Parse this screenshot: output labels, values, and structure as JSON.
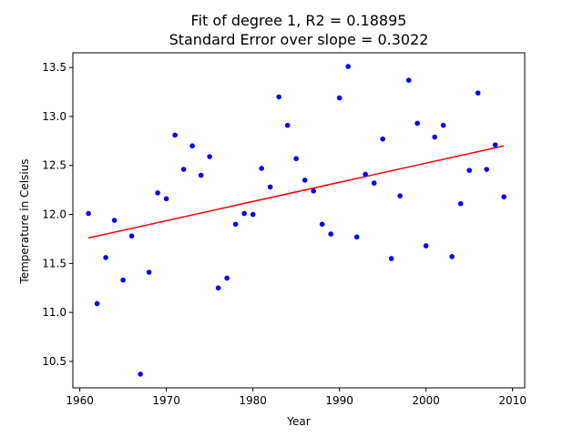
{
  "chart_data": {
    "type": "scatter",
    "title_line1": "Fit of degree 1, R2 = 0.18895",
    "title_line2": "Standard Error over slope = 0.3022",
    "xlabel": "Year",
    "ylabel": "Temperature in Celsius",
    "xlim": [
      1959.2,
      2011.4
    ],
    "ylim": [
      10.23,
      13.65
    ],
    "grid": false,
    "x_ticks": [
      1960,
      1970,
      1980,
      1990,
      2000,
      2010
    ],
    "y_ticks": [
      10.5,
      11.0,
      11.5,
      12.0,
      12.5,
      13.0,
      13.5
    ],
    "x_tick_labels": [
      "1960",
      "1970",
      "1980",
      "1990",
      "2000",
      "2010"
    ],
    "y_tick_labels": [
      "10.5",
      "11.0",
      "11.5",
      "12.0",
      "12.5",
      "13.0",
      "13.5"
    ],
    "series": [
      {
        "kind": "scatter",
        "color": "#0000ff",
        "points": [
          [
            1961,
            12.01
          ],
          [
            1962,
            11.09
          ],
          [
            1963,
            11.56
          ],
          [
            1964,
            11.94
          ],
          [
            1965,
            11.33
          ],
          [
            1966,
            11.78
          ],
          [
            1967,
            10.37
          ],
          [
            1968,
            11.41
          ],
          [
            1969,
            12.22
          ],
          [
            1970,
            12.16
          ],
          [
            1971,
            12.81
          ],
          [
            1972,
            12.46
          ],
          [
            1973,
            12.7
          ],
          [
            1974,
            12.4
          ],
          [
            1975,
            12.59
          ],
          [
            1976,
            11.25
          ],
          [
            1977,
            11.35
          ],
          [
            1978,
            11.9
          ],
          [
            1979,
            12.01
          ],
          [
            1980,
            12.0
          ],
          [
            1981,
            12.47
          ],
          [
            1982,
            12.28
          ],
          [
            1983,
            13.2
          ],
          [
            1984,
            12.91
          ],
          [
            1985,
            12.57
          ],
          [
            1986,
            12.35
          ],
          [
            1987,
            12.24
          ],
          [
            1988,
            11.9
          ],
          [
            1989,
            11.8
          ],
          [
            1990,
            13.19
          ],
          [
            1991,
            13.51
          ],
          [
            1992,
            11.77
          ],
          [
            1993,
            12.41
          ],
          [
            1994,
            12.32
          ],
          [
            1995,
            12.77
          ],
          [
            1996,
            11.55
          ],
          [
            1997,
            12.19
          ],
          [
            1998,
            13.37
          ],
          [
            1999,
            12.93
          ],
          [
            2000,
            11.68
          ],
          [
            2001,
            12.79
          ],
          [
            2002,
            12.91
          ],
          [
            2003,
            11.57
          ],
          [
            2004,
            12.11
          ],
          [
            2005,
            12.45
          ],
          [
            2006,
            13.24
          ],
          [
            2007,
            12.46
          ],
          [
            2008,
            12.71
          ],
          [
            2009,
            12.18
          ]
        ]
      },
      {
        "kind": "line",
        "color": "#ff0000",
        "points": [
          [
            1961,
            11.76
          ],
          [
            2009,
            12.7
          ]
        ]
      }
    ]
  }
}
